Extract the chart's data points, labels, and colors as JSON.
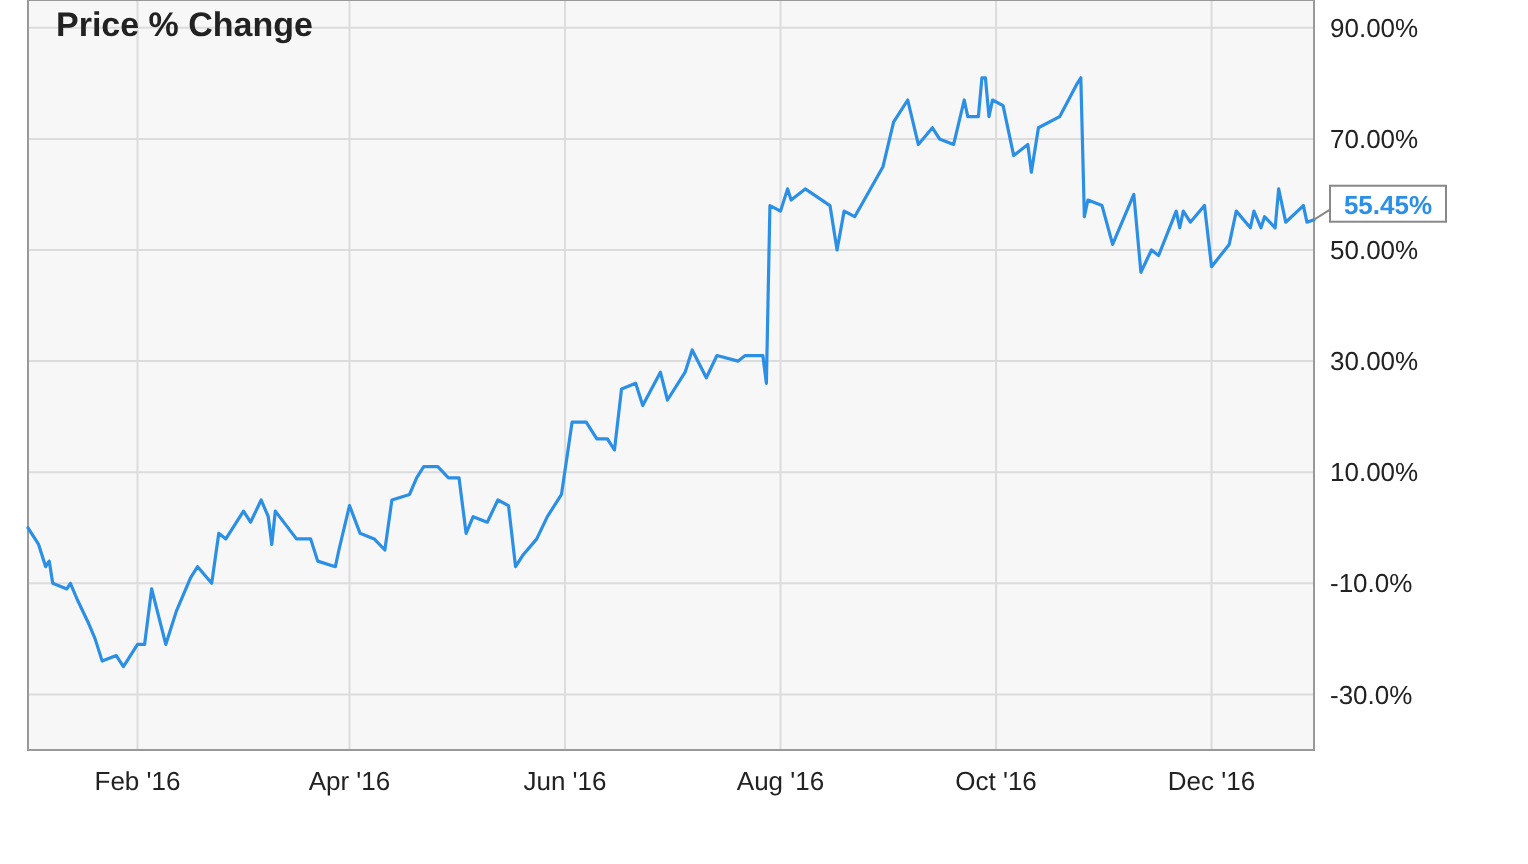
{
  "chart_data": {
    "type": "line",
    "title": "Price % Change",
    "x": [
      "2016-01-01",
      "2016-01-04",
      "2016-01-06",
      "2016-01-07",
      "2016-01-08",
      "2016-01-12",
      "2016-01-13",
      "2016-01-15",
      "2016-01-18",
      "2016-01-20",
      "2016-01-22",
      "2016-01-26",
      "2016-01-28",
      "2016-01-29",
      "2016-02-01",
      "2016-02-03",
      "2016-02-05",
      "2016-02-09",
      "2016-02-12",
      "2016-02-16",
      "2016-02-18",
      "2016-02-22",
      "2016-02-24",
      "2016-02-26",
      "2016-03-02",
      "2016-03-04",
      "2016-03-07",
      "2016-03-09",
      "2016-03-10",
      "2016-03-11",
      "2016-03-17",
      "2016-03-21",
      "2016-03-23",
      "2016-03-28",
      "2016-03-29",
      "2016-04-01",
      "2016-04-04",
      "2016-04-08",
      "2016-04-11",
      "2016-04-13",
      "2016-04-18",
      "2016-04-20",
      "2016-04-22",
      "2016-04-26",
      "2016-04-29",
      "2016-05-02",
      "2016-05-04",
      "2016-05-06",
      "2016-05-10",
      "2016-05-13",
      "2016-05-16",
      "2016-05-18",
      "2016-05-20",
      "2016-05-24",
      "2016-05-27",
      "2016-05-31",
      "2016-06-03",
      "2016-06-07",
      "2016-06-10",
      "2016-06-13",
      "2016-06-15",
      "2016-06-17",
      "2016-06-21",
      "2016-06-23",
      "2016-06-28",
      "2016-06-30",
      "2016-07-05",
      "2016-07-07",
      "2016-07-11",
      "2016-07-14",
      "2016-07-20",
      "2016-07-22",
      "2016-07-27",
      "2016-07-28",
      "2016-07-29",
      "2016-08-01",
      "2016-08-03",
      "2016-08-04",
      "2016-08-08",
      "2016-08-15",
      "2016-08-17",
      "2016-08-19",
      "2016-08-22",
      "2016-08-30",
      "2016-09-02",
      "2016-09-06",
      "2016-09-09",
      "2016-09-13",
      "2016-09-15",
      "2016-09-19",
      "2016-09-22",
      "2016-09-23",
      "2016-09-26",
      "2016-09-27",
      "2016-09-28",
      "2016-09-29",
      "2016-09-30",
      "2016-10-03",
      "2016-10-06",
      "2016-10-10",
      "2016-10-11",
      "2016-10-13",
      "2016-10-19",
      "2016-10-24",
      "2016-10-25",
      "2016-10-26",
      "2016-10-27",
      "2016-10-31",
      "2016-11-03",
      "2016-11-09",
      "2016-11-11",
      "2016-11-14",
      "2016-11-16",
      "2016-11-21",
      "2016-11-22",
      "2016-11-23",
      "2016-11-25",
      "2016-11-29",
      "2016-12-01",
      "2016-12-06",
      "2016-12-08",
      "2016-12-12",
      "2016-12-13",
      "2016-12-15",
      "2016-12-16",
      "2016-12-19",
      "2016-12-20",
      "2016-12-22",
      "2016-12-27",
      "2016-12-28",
      "2016-12-30"
    ],
    "series": [
      {
        "color": "#2b8fe6",
        "values": [
          0,
          -3,
          -7,
          -6,
          -10,
          -11,
          -10,
          -13,
          -17,
          -20,
          -24,
          -23,
          -25,
          -24,
          -21,
          -21,
          -11,
          -21,
          -15,
          -9,
          -7,
          -10,
          -1,
          -2,
          3,
          1,
          5,
          2,
          -3,
          3,
          -2,
          -2,
          -6,
          -7,
          -4,
          4,
          -1,
          -2,
          -4,
          5,
          6,
          9,
          11,
          11,
          9,
          9,
          -1,
          2,
          1,
          5,
          4,
          -7,
          -5,
          -2,
          2,
          6,
          19,
          19,
          16,
          16,
          14,
          25,
          26,
          22,
          28,
          23,
          28,
          32,
          27,
          31,
          30,
          31,
          31,
          26,
          58,
          57,
          61,
          59,
          61,
          58,
          50,
          57,
          56,
          65,
          73,
          77,
          69,
          72,
          70,
          69,
          77,
          74,
          74,
          81,
          81,
          74,
          77,
          76,
          67,
          69,
          64,
          72,
          74,
          80,
          81,
          56,
          59,
          58,
          51,
          60,
          46,
          50,
          49,
          57,
          54,
          57,
          55,
          58,
          47,
          51,
          57,
          54,
          57,
          54,
          56,
          54,
          61,
          55,
          58,
          55,
          55.45
        ]
      }
    ],
    "xlim": [
      "2016-01-01",
      "2016-12-30"
    ],
    "xticks": [
      {
        "value": "2016-02-01",
        "label": "Feb '16"
      },
      {
        "value": "2016-04-01",
        "label": "Apr '16"
      },
      {
        "value": "2016-06-01",
        "label": "Jun '16"
      },
      {
        "value": "2016-08-01",
        "label": "Aug '16"
      },
      {
        "value": "2016-10-01",
        "label": "Oct '16"
      },
      {
        "value": "2016-12-01",
        "label": "Dec '16"
      }
    ],
    "ylim": [
      -40,
      95
    ],
    "yticks": [
      {
        "value": 90,
        "label": "90.00%"
      },
      {
        "value": 70,
        "label": "70.00%"
      },
      {
        "value": 50,
        "label": "50.00%"
      },
      {
        "value": 30,
        "label": "30.00%"
      },
      {
        "value": 10,
        "label": "10.00%"
      },
      {
        "value": -10,
        "label": "-10.0%"
      },
      {
        "value": -30,
        "label": "-30.0%"
      }
    ],
    "grid": true,
    "annotations": [
      {
        "text": "55.45%",
        "x": "2016-12-30",
        "y": 55.45
      }
    ]
  }
}
